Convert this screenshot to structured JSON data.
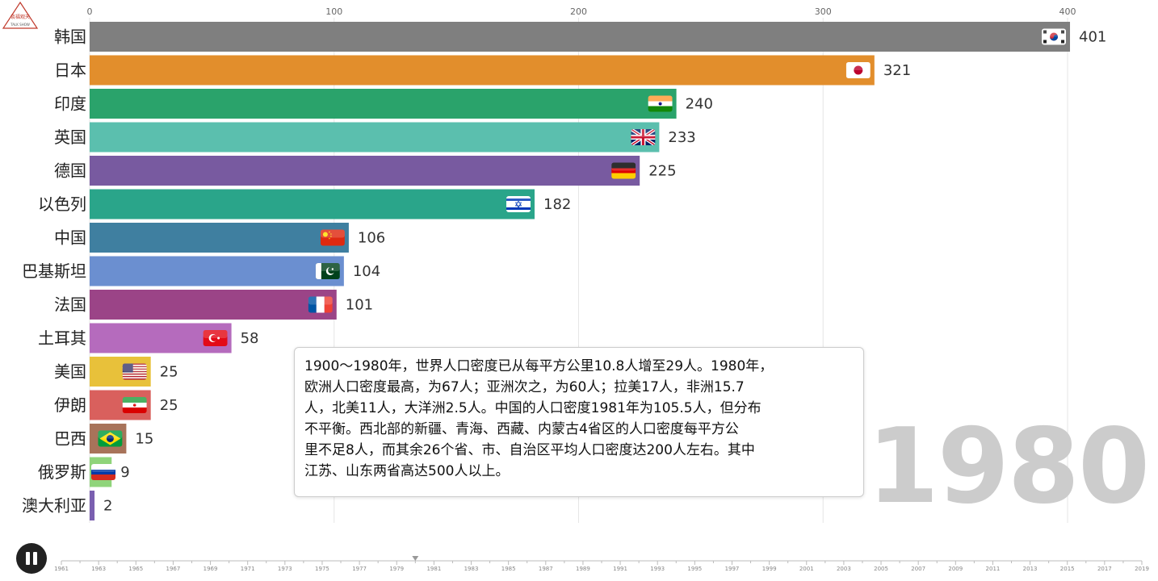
{
  "logo": {
    "text_line1": "谈福观天",
    "text_line2": "TALK SHOW"
  },
  "year": "1980",
  "info_text": "1900～1980年，世界人口密度已从每平方公里10.8人增至29人。1980年，\n欧洲人口密度最高，为67人；亚洲次之，为60人；拉美17人，非洲15.7\n人，北美11人，大洋洲2.5人。中国的人口密度1981年为105.5人，但分布\n不平衡。西北部的新疆、青海、西藏、内蒙古4省区的人口密度每平方公\n里不足8人，而其余26个省、市、自治区平均人口密度达200人左右。其中\n江苏、山东两省高达500人以上。",
  "chart_data": {
    "type": "bar",
    "orientation": "horizontal",
    "xlim": [
      0,
      400
    ],
    "xticks": [
      0,
      100,
      200,
      300,
      400
    ],
    "grid": true,
    "categories": [
      "韩国",
      "日本",
      "印度",
      "英国",
      "德国",
      "以色列",
      "中国",
      "巴基斯坦",
      "法国",
      "土耳其",
      "美国",
      "伊朗",
      "巴西",
      "俄罗斯",
      "澳大利亚"
    ],
    "values": [
      401,
      321,
      240,
      233,
      225,
      182,
      106,
      104,
      101,
      58,
      25,
      25,
      15,
      9,
      2
    ],
    "colors": [
      "#7f7f7f",
      "#e28e2c",
      "#2aa36b",
      "#5bbfae",
      "#785aa0",
      "#2aa58a",
      "#3f7fa0",
      "#6b8fd0",
      "#9b4487",
      "#b56bbd",
      "#e8c13a",
      "#d9605d",
      "#a8735a",
      "#8fd47a",
      "#7a5fb0"
    ],
    "flags": [
      "kr",
      "jp",
      "in",
      "gb",
      "de",
      "il",
      "cn",
      "pk",
      "fr",
      "tr",
      "us",
      "ir",
      "br",
      "ru",
      "au"
    ]
  },
  "timeline": {
    "labels": [
      "1961",
      "1963",
      "1965",
      "1967",
      "1969",
      "1971",
      "1973",
      "1975",
      "1977",
      "1979",
      "1981",
      "1983",
      "1985",
      "1987",
      "1989",
      "1991",
      "1993",
      "1995",
      "1997",
      "1999",
      "2001",
      "2003",
      "2005",
      "2007",
      "2009",
      "2011",
      "2013",
      "2015",
      "2017",
      "2019"
    ],
    "current_year": 1980
  }
}
